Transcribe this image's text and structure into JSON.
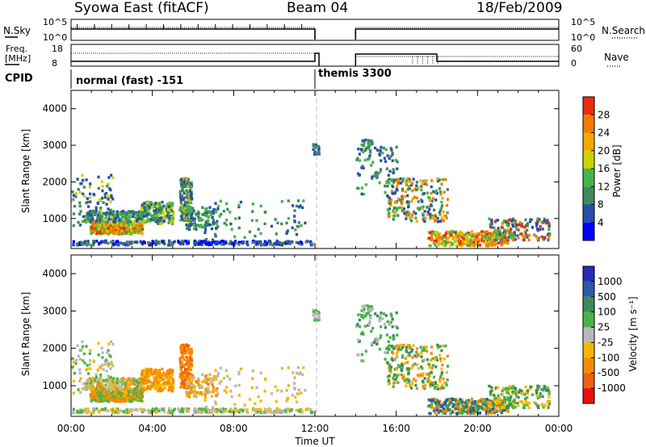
{
  "header": {
    "title": "Syowa East (fitACF)",
    "beam": "Beam 04",
    "date": "18/Feb/2009"
  },
  "top_panels": {
    "nsky_label": "N.Sky",
    "nsky_ticks": [
      "10^5",
      "10^0"
    ],
    "nsearch_label": "N.Search",
    "nsearch_ticks": [
      "10^5",
      "10^0"
    ],
    "freq_label_line1": "Freq.",
    "freq_label_line2": "[MHz]",
    "freq_ticks": [
      "18",
      "8"
    ],
    "nave_label": "Nave",
    "nave_ticks": [
      "60",
      "0"
    ],
    "cpid_label": "CPID",
    "cpid_segments": [
      "normal (fast) -151",
      "themis 3300"
    ]
  },
  "colors": {
    "power_scale": [
      "#0000ff",
      "#2a4fa8",
      "#3f8a5a",
      "#49b34a",
      "#c8d400",
      "#f5a800",
      "#f57c00",
      "#ee2a10"
    ],
    "velocity_scale": [
      "#2a2ab8",
      "#2a5aa8",
      "#3a8a5a",
      "#49b34a",
      "#b8b8b8",
      "#f5b800",
      "#f58c00",
      "#f06010",
      "#e81010"
    ]
  },
  "chart_data": [
    {
      "type": "heatmap",
      "name": "power",
      "ylabel": "Slant Range [km]",
      "xlabel": "Time UT",
      "x_ticks": [
        "00:00",
        "04:00",
        "08:00",
        "12:00",
        "16:00",
        "20:00",
        "00:00"
      ],
      "x_range_hours": [
        0,
        24
      ],
      "y_ticks": [
        1000,
        2000,
        3000,
        4000
      ],
      "ylim": [
        180,
        4500
      ],
      "colorbar": {
        "label": "Power [dB]",
        "ticks": [
          "4",
          "8",
          "12",
          "16",
          "20",
          "24",
          "28"
        ],
        "range": [
          0,
          30
        ]
      }
    },
    {
      "type": "heatmap",
      "name": "velocity",
      "ylabel": "Slant Range [km]",
      "xlabel": "Time UT",
      "x_ticks": [
        "00:00",
        "04:00",
        "08:00",
        "12:00",
        "16:00",
        "20:00",
        "00:00"
      ],
      "x_range_hours": [
        0,
        24
      ],
      "y_ticks": [
        1000,
        2000,
        3000,
        4000
      ],
      "ylim": [
        180,
        4500
      ],
      "colorbar": {
        "label": "Velocity [m s⁻¹]",
        "ticks": [
          "1000",
          "500",
          "100",
          "25",
          "-25",
          "-100",
          "-500",
          "-1000"
        ]
      }
    }
  ]
}
